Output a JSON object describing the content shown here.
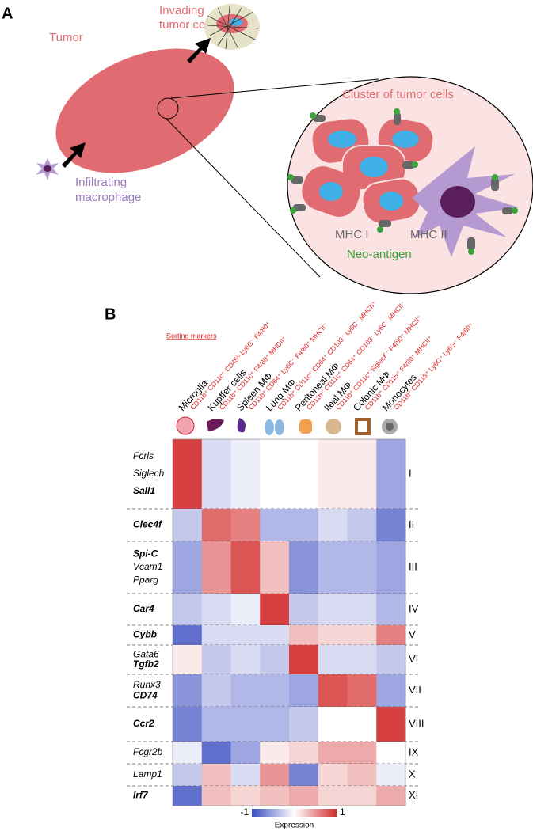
{
  "panel_a": {
    "label": "A",
    "tumor": "Tumor",
    "invading": [
      "Invading",
      "tumor cell"
    ],
    "infiltrating": [
      "Infiltrating",
      "macrophage"
    ],
    "cluster": "Cluster of tumor cells",
    "mhc1": "MHC I",
    "mhc2": "MHC II",
    "neo": "Neo-antigen"
  },
  "panel_b": {
    "label": "B",
    "sorting": "Sorting markers",
    "columns": [
      {
        "name": "Microglia",
        "markers": "CD11b⁺ CD11c⁺ CD45ˡᵒ Ly6G⁻ F4/80⁺"
      },
      {
        "name": "Kupffer cells",
        "markers": "CD11b⁺ CD11c⁺ F4/80⁺ MHCII⁺"
      },
      {
        "name": "Spleen MΦ",
        "markers": "CD11b⁺ CD64⁺ Ly6C⁻ F4/80⁺ MHCII⁻"
      },
      {
        "name": "Lung MΦ",
        "markers": "CD11b⁺ CD11c⁺ CD64⁺ CD103⁻ Ly6C⁻ MHCII⁺"
      },
      {
        "name": "Peritoneal MΦ",
        "markers": "CD11b⁺ CD11c⁺ CD64⁺ CD103⁻ Ly6C⁻ MHCII⁻"
      },
      {
        "name": "Ileal MΦ",
        "markers": "CD11b⁺ CD11c⁺ SiglecF⁻ F4/80⁺ MHCII⁺"
      },
      {
        "name": "Colonic MΦ",
        "markers": "CD11b⁺ CD115⁺ F4/80⁺ MHCII⁺"
      },
      {
        "name": "Monocytes",
        "markers": "CD11b⁺ CD115⁺ Ly6C⁺ Ly6G⁻ F4/80⁺"
      }
    ],
    "clusters": [
      {
        "name": "I",
        "genes": [
          {
            "text": "Fcrls",
            "bold": false
          },
          {
            "text": "Siglech",
            "bold": false
          },
          {
            "text": "Sall1",
            "bold": true
          }
        ],
        "values": [
          0.9,
          -0.2,
          -0.1,
          0,
          0,
          0.1,
          0.1,
          -0.5
        ]
      },
      {
        "name": "II",
        "genes": [
          {
            "text": "Clec4f",
            "bold": true
          }
        ],
        "values": [
          -0.3,
          0.7,
          0.6,
          -0.4,
          -0.4,
          -0.2,
          -0.3,
          -0.7
        ]
      },
      {
        "name": "III",
        "genes": [
          {
            "text": "Spi-C",
            "bold": true
          },
          {
            "text": "Vcam1",
            "bold": false
          },
          {
            "text": "Pparg",
            "bold": false
          }
        ],
        "values": [
          -0.5,
          0.5,
          0.8,
          0.3,
          -0.6,
          -0.4,
          -0.4,
          -0.5
        ]
      },
      {
        "name": "IV",
        "genes": [
          {
            "text": "Car4",
            "bold": true
          }
        ],
        "values": [
          -0.3,
          -0.2,
          -0.1,
          0.9,
          -0.3,
          -0.2,
          -0.2,
          -0.4
        ]
      },
      {
        "name": "V",
        "genes": [
          {
            "text": "Cybb",
            "bold": true
          }
        ],
        "values": [
          -0.8,
          -0.2,
          -0.2,
          -0.2,
          0.3,
          0.2,
          0.2,
          0.6
        ]
      },
      {
        "name": "VI",
        "genes": [
          {
            "text": "Gata6",
            "bold": false
          },
          {
            "text": "Tgfb2",
            "bold": true
          }
        ],
        "values": [
          0.1,
          -0.3,
          -0.2,
          -0.3,
          0.9,
          -0.2,
          -0.2,
          -0.3
        ]
      },
      {
        "name": "VII",
        "genes": [
          {
            "text": "Runx3",
            "bold": false
          },
          {
            "text": "CD74",
            "bold": true
          }
        ],
        "values": [
          -0.6,
          -0.3,
          -0.4,
          -0.4,
          -0.5,
          0.8,
          0.7,
          -0.5
        ]
      },
      {
        "name": "VIII",
        "genes": [
          {
            "text": "Ccr2",
            "bold": true
          }
        ],
        "values": [
          -0.7,
          -0.4,
          -0.4,
          -0.4,
          -0.3,
          0,
          0,
          0.9
        ]
      },
      {
        "name": "IX",
        "genes": [
          {
            "text": "Fcgr2b",
            "bold": false
          }
        ],
        "values": [
          -0.1,
          -0.8,
          -0.5,
          0.1,
          0.2,
          0.4,
          0.4,
          0
        ]
      },
      {
        "name": "X",
        "genes": [
          {
            "text": "Lamp1",
            "bold": false
          }
        ],
        "values": [
          -0.3,
          0.3,
          -0.2,
          0.5,
          -0.7,
          0.2,
          0.3,
          -0.1
        ]
      },
      {
        "name": "XI",
        "genes": [
          {
            "text": "Irf7",
            "bold": true
          }
        ],
        "values": [
          -0.8,
          0.3,
          0.2,
          0.3,
          0.4,
          0.2,
          0.2,
          0.4
        ]
      }
    ],
    "colorbar": {
      "label": "Expression",
      "clim": [
        -1,
        1
      ],
      "ticks": [
        -1,
        1
      ]
    }
  }
}
